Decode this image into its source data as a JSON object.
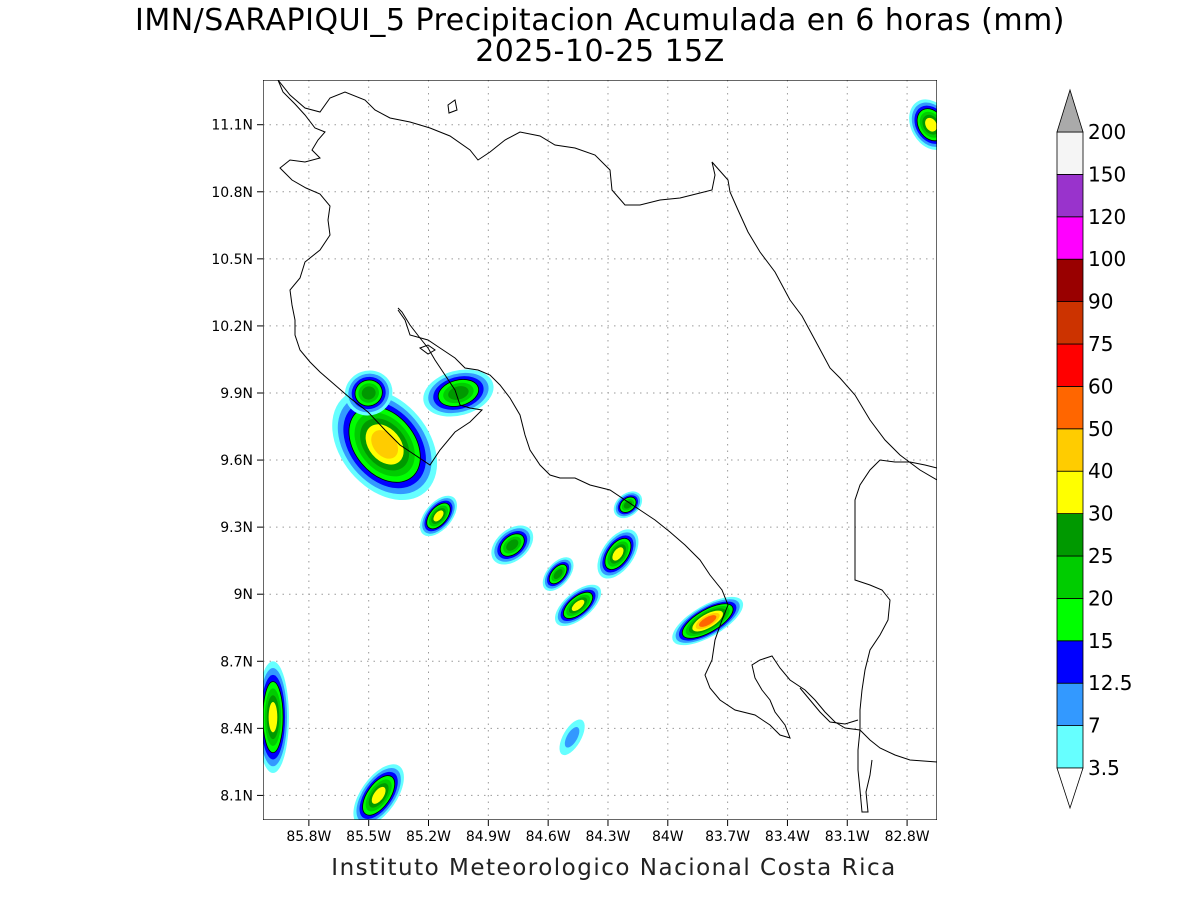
{
  "title": {
    "line1": "IMN/SARAPIQUI_5 Precipitacion Acumulada en 6 horas (mm)",
    "line2": "2025-10-25 15Z"
  },
  "credit": "Instituto Meteorologico Nacional Costa Rica",
  "map": {
    "lon_range": [
      -86.03,
      -82.65
    ],
    "lat_range": [
      7.99,
      11.3
    ],
    "lon_ticks": [
      {
        "value": -85.8,
        "label": "85.8W"
      },
      {
        "value": -85.5,
        "label": "85.5W"
      },
      {
        "value": -85.2,
        "label": "85.2W"
      },
      {
        "value": -84.9,
        "label": "84.9W"
      },
      {
        "value": -84.6,
        "label": "84.6W"
      },
      {
        "value": -84.3,
        "label": "84.3W"
      },
      {
        "value": -84.0,
        "label": "84W"
      },
      {
        "value": -83.7,
        "label": "83.7W"
      },
      {
        "value": -83.4,
        "label": "83.4W"
      },
      {
        "value": -83.1,
        "label": "83.1W"
      },
      {
        "value": -82.8,
        "label": "82.8W"
      }
    ],
    "lat_ticks": [
      {
        "value": 11.1,
        "label": "11.1N"
      },
      {
        "value": 10.8,
        "label": "10.8N"
      },
      {
        "value": 10.5,
        "label": "10.5N"
      },
      {
        "value": 10.2,
        "label": "10.2N"
      },
      {
        "value": 9.9,
        "label": "9.9N"
      },
      {
        "value": 9.6,
        "label": "9.6N"
      },
      {
        "value": 9.3,
        "label": "9.3N"
      },
      {
        "value": 9.0,
        "label": "9N"
      },
      {
        "value": 8.7,
        "label": "8.7N"
      },
      {
        "value": 8.4,
        "label": "8.4N"
      },
      {
        "value": 8.1,
        "label": "8.1N"
      }
    ]
  },
  "colorbar": {
    "levels": [
      {
        "label": "3.5",
        "color": "#66ffff"
      },
      {
        "label": "7",
        "color": "#3399ff"
      },
      {
        "label": "12.5",
        "color": "#0000ff"
      },
      {
        "label": "15",
        "color": "#00ff00"
      },
      {
        "label": "20",
        "color": "#00cc00"
      },
      {
        "label": "25",
        "color": "#009900"
      },
      {
        "label": "30",
        "color": "#ffff00"
      },
      {
        "label": "40",
        "color": "#ffcc00"
      },
      {
        "label": "50",
        "color": "#ff6600"
      },
      {
        "label": "60",
        "color": "#ff0000"
      },
      {
        "label": "75",
        "color": "#cc3300"
      },
      {
        "label": "90",
        "color": "#990000"
      },
      {
        "label": "100",
        "color": "#ff00ff"
      },
      {
        "label": "120",
        "color": "#9933cc"
      },
      {
        "label": "150",
        "color": "#f5f5f5"
      },
      {
        "label": "200",
        "color": "#aaaaaa"
      }
    ]
  },
  "features": [
    {
      "kind": "precip-cell",
      "lon": -85.42,
      "lat": 9.67,
      "rx_deg": 0.22,
      "ry_deg": 0.28,
      "angle": -40,
      "peak_mm": 45
    },
    {
      "kind": "precip-cell",
      "lon": -85.5,
      "lat": 9.9,
      "rx_deg": 0.12,
      "ry_deg": 0.1,
      "angle": -20,
      "peak_mm": 28
    },
    {
      "kind": "precip-cell",
      "lon": -85.05,
      "lat": 9.9,
      "rx_deg": 0.18,
      "ry_deg": 0.1,
      "angle": -15,
      "peak_mm": 28
    },
    {
      "kind": "precip-cell",
      "lon": -85.15,
      "lat": 9.35,
      "rx_deg": 0.12,
      "ry_deg": 0.06,
      "angle": -50,
      "peak_mm": 35
    },
    {
      "kind": "precip-cell",
      "lon": -84.78,
      "lat": 9.22,
      "rx_deg": 0.12,
      "ry_deg": 0.07,
      "angle": -40,
      "peak_mm": 28
    },
    {
      "kind": "precip-cell",
      "lon": -84.55,
      "lat": 9.09,
      "rx_deg": 0.1,
      "ry_deg": 0.05,
      "angle": -50,
      "peak_mm": 26
    },
    {
      "kind": "precip-cell",
      "lon": -84.45,
      "lat": 8.95,
      "rx_deg": 0.14,
      "ry_deg": 0.06,
      "angle": -40,
      "peak_mm": 32
    },
    {
      "kind": "precip-cell",
      "lon": -84.25,
      "lat": 9.18,
      "rx_deg": 0.14,
      "ry_deg": 0.07,
      "angle": -55,
      "peak_mm": 35
    },
    {
      "kind": "precip-cell",
      "lon": -84.2,
      "lat": 9.4,
      "rx_deg": 0.08,
      "ry_deg": 0.05,
      "angle": -40,
      "peak_mm": 26
    },
    {
      "kind": "precip-cell",
      "lon": -83.8,
      "lat": 8.88,
      "rx_deg": 0.2,
      "ry_deg": 0.07,
      "angle": -30,
      "peak_mm": 50
    },
    {
      "kind": "precip-cell",
      "lon": -85.98,
      "lat": 8.45,
      "rx_deg": 0.08,
      "ry_deg": 0.25,
      "angle": 0,
      "peak_mm": 35
    },
    {
      "kind": "precip-cell",
      "lon": -85.45,
      "lat": 8.1,
      "rx_deg": 0.18,
      "ry_deg": 0.08,
      "angle": -55,
      "peak_mm": 35
    },
    {
      "kind": "precip-cell",
      "lon": -82.68,
      "lat": 11.1,
      "rx_deg": 0.1,
      "ry_deg": 0.12,
      "angle": -30,
      "peak_mm": 30
    },
    {
      "kind": "precip-cell",
      "lon": -84.48,
      "lat": 8.36,
      "rx_deg": 0.1,
      "ry_deg": 0.04,
      "angle": -60,
      "peak_mm": 8
    }
  ]
}
